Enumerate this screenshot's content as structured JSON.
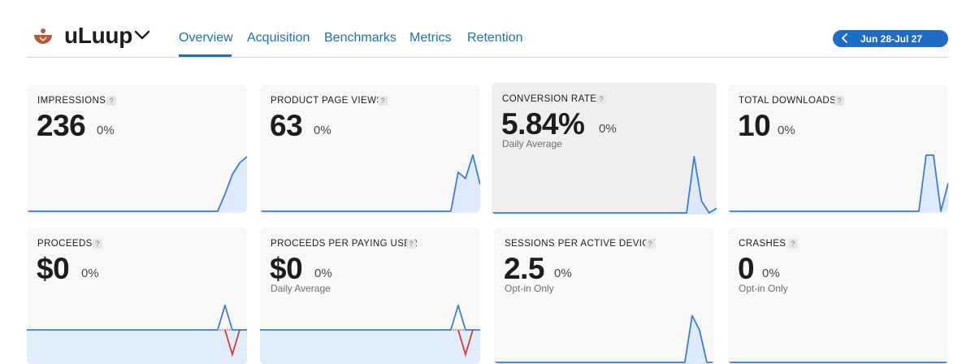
{
  "app": {
    "name": "uLuup",
    "logo_icon": "bowl-logo-icon"
  },
  "tabs": [
    {
      "label": "Overview",
      "active": true
    },
    {
      "label": "Acquisition",
      "active": false
    },
    {
      "label": "Benchmarks",
      "active": false
    },
    {
      "label": "Metrics",
      "active": false
    },
    {
      "label": "Retention",
      "active": false
    }
  ],
  "date_range": {
    "label": "Jun 28-Jul 27"
  },
  "colors": {
    "accent": "#1e6cc4",
    "line": "#3b7dd8",
    "fill": "#d7e7fb",
    "negative": "#d63b2f"
  },
  "metrics": [
    {
      "label": "IMPRESSIONS",
      "value": "236",
      "change": "0%",
      "sub": "",
      "help": "?",
      "trend": [
        0,
        0,
        0,
        0,
        0,
        0,
        0,
        0,
        0,
        0,
        0,
        0,
        0,
        0,
        0,
        0,
        0,
        0,
        0,
        0,
        0,
        0,
        0,
        0,
        0,
        0,
        0,
        0.22,
        0.47,
        0.62,
        0.7
      ],
      "negative": []
    },
    {
      "label": "PRODUCT PAGE VIEWS",
      "value": "63",
      "change": "0%",
      "sub": "",
      "help": "?",
      "trend": [
        0,
        0,
        0,
        0,
        0,
        0,
        0,
        0,
        0,
        0,
        0,
        0,
        0,
        0,
        0,
        0,
        0,
        0,
        0,
        0,
        0,
        0,
        0,
        0,
        0,
        0,
        0,
        0.5,
        0.42,
        0.72,
        0.34
      ],
      "negative": []
    },
    {
      "label": "CONVERSION RATE",
      "value": "5.84%",
      "change": "0%",
      "sub": "Daily Average",
      "help": "?",
      "trend": [
        0,
        0,
        0,
        0,
        0,
        0,
        0,
        0,
        0,
        0,
        0,
        0,
        0,
        0,
        0,
        0,
        0,
        0,
        0,
        0,
        0,
        0,
        0,
        0,
        0,
        0,
        0,
        0.72,
        0.15,
        0,
        0.06
      ],
      "negative": []
    },
    {
      "label": "TOTAL DOWNLOADS",
      "value": "10",
      "change": "0%",
      "sub": "",
      "help": "?",
      "trend": [
        0,
        0,
        0,
        0,
        0,
        0,
        0,
        0,
        0,
        0,
        0,
        0,
        0,
        0,
        0,
        0,
        0,
        0,
        0,
        0,
        0,
        0,
        0,
        0,
        0,
        0,
        0,
        0.72,
        0.72,
        0,
        0.36
      ],
      "negative": []
    },
    {
      "label": "PROCEEDS",
      "value": "$0",
      "change": "0%",
      "sub": "",
      "help": "?",
      "trend": [
        0,
        0,
        0,
        0,
        0,
        0,
        0,
        0,
        0,
        0,
        0,
        0,
        0,
        0,
        0,
        0,
        0,
        0,
        0,
        0,
        0,
        0,
        0,
        0,
        0,
        0,
        0,
        0.72,
        0,
        0,
        0
      ],
      "negative": [
        0,
        0,
        0,
        0,
        0,
        0,
        0,
        0,
        0,
        0,
        0,
        0,
        0,
        0,
        0,
        0,
        0,
        0,
        0,
        0,
        0,
        0,
        0,
        0,
        0,
        0,
        0,
        0,
        -0.72,
        0,
        0
      ]
    },
    {
      "label": "PROCEEDS PER PAYING USER",
      "value": "$0",
      "change": "0%",
      "sub": "Daily Average",
      "help": "?",
      "trend": [
        0,
        0,
        0,
        0,
        0,
        0,
        0,
        0,
        0,
        0,
        0,
        0,
        0,
        0,
        0,
        0,
        0,
        0,
        0,
        0,
        0,
        0,
        0,
        0,
        0,
        0,
        0,
        0.72,
        0,
        0,
        0
      ],
      "negative": [
        0,
        0,
        0,
        0,
        0,
        0,
        0,
        0,
        0,
        0,
        0,
        0,
        0,
        0,
        0,
        0,
        0,
        0,
        0,
        0,
        0,
        0,
        0,
        0,
        0,
        0,
        0,
        0,
        -0.72,
        0,
        0
      ]
    },
    {
      "label": "SESSIONS PER ACTIVE DEVICE",
      "value": "2.5",
      "change": "0%",
      "sub": "Opt-in Only",
      "help": "?",
      "trend": [
        0,
        0,
        0,
        0,
        0,
        0,
        0,
        0,
        0,
        0,
        0,
        0,
        0,
        0,
        0,
        0,
        0,
        0,
        0,
        0,
        0,
        0,
        0,
        0,
        0,
        0,
        0,
        0.72,
        0.5,
        0,
        0
      ],
      "negative": []
    },
    {
      "label": "CRASHES",
      "value": "0",
      "change": "0%",
      "sub": "Opt-in Only",
      "help": "?",
      "trend": [
        0,
        0,
        0,
        0,
        0,
        0,
        0,
        0,
        0,
        0,
        0,
        0,
        0,
        0,
        0,
        0,
        0,
        0,
        0,
        0,
        0,
        0,
        0,
        0,
        0,
        0,
        0,
        0,
        0,
        0,
        0
      ],
      "negative": []
    }
  ]
}
